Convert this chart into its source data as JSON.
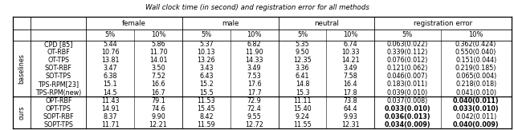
{
  "title": "Wall clock time (in second) and registration error for all methods",
  "col_groups": [
    "female",
    "male",
    "neutral",
    "registration error"
  ],
  "col_subheaders": [
    "5%",
    "10%",
    "5%",
    "10%",
    "5%",
    "10%",
    "5%",
    "10%"
  ],
  "row_groups": [
    {
      "label": "baselines",
      "rows": [
        [
          "CPD [85]",
          "5.44",
          "5.86",
          "5.37",
          "6.82",
          "5.35",
          "6.74",
          "0.063(0.022)",
          "0.362(0.424)"
        ],
        [
          "OT-RBF",
          "10.76",
          "11.70",
          "10.13",
          "11.90",
          "9.50",
          "10.33",
          "0.339(0.112)",
          "0.550(0.040)"
        ],
        [
          "OT-TPS",
          "13.81",
          "14.01",
          "13.26",
          "14.33",
          "12.35",
          "14.21",
          "0.076(0.012)",
          "0.151(0.044)"
        ],
        [
          "SOT-RBF",
          "3.47",
          "3.50",
          "3.43",
          "3.49",
          "3.36",
          "3.49",
          "0.121(0.062)",
          "0.219(0.185)"
        ],
        [
          "SOT-TPS",
          "6.38",
          "7.52",
          "6.43",
          "7.53",
          "6.41",
          "7.58",
          "0.046(0.007)",
          "0.065(0.004)"
        ],
        [
          "TPS-RPM[23]",
          "15.1",
          "16.6",
          "15.2",
          "17.6",
          "14.8",
          "16.4",
          "0.183(0.011)",
          "0.218(0.018)"
        ],
        [
          "TPS-RPM(new)",
          "14.5",
          "16.7",
          "15.5",
          "17.7",
          "15.3",
          "17.8",
          "0.039(0.010)",
          "0.041(0.010)"
        ]
      ]
    },
    {
      "label": "ours",
      "rows": [
        [
          "OPT-RBF",
          "11.43",
          "79.1",
          "11.53",
          "72.9",
          "11.11",
          "73.8",
          "0.037(0.008)",
          "0.040(0.011)"
        ],
        [
          "OPT-TPS",
          "14.91",
          "74.6",
          "15.45",
          "72.4",
          "15.40",
          "64.4",
          "0.033(0.010)",
          "0.033(0.010)"
        ],
        [
          "SOPT-RBF",
          "8.37",
          "9.90",
          "8.42",
          "9.55",
          "9.24",
          "9.93",
          "0.036(0.013)",
          "0.042(0.011)"
        ],
        [
          "SOPT-TPS",
          "11.71",
          "12.21",
          "11.59",
          "12.72",
          "11.55",
          "12.31",
          "0.034(0.009)",
          "0.040(0.009)"
        ]
      ]
    }
  ],
  "bold_ours_reg_error": {
    "OPT-RBF": [
      false,
      true
    ],
    "OPT-TPS": [
      true,
      true
    ],
    "SOPT-RBF": [
      true,
      false
    ],
    "SOPT-TPS": [
      true,
      true
    ]
  },
  "figsize": [
    6.4,
    1.63
  ],
  "dpi": 100
}
